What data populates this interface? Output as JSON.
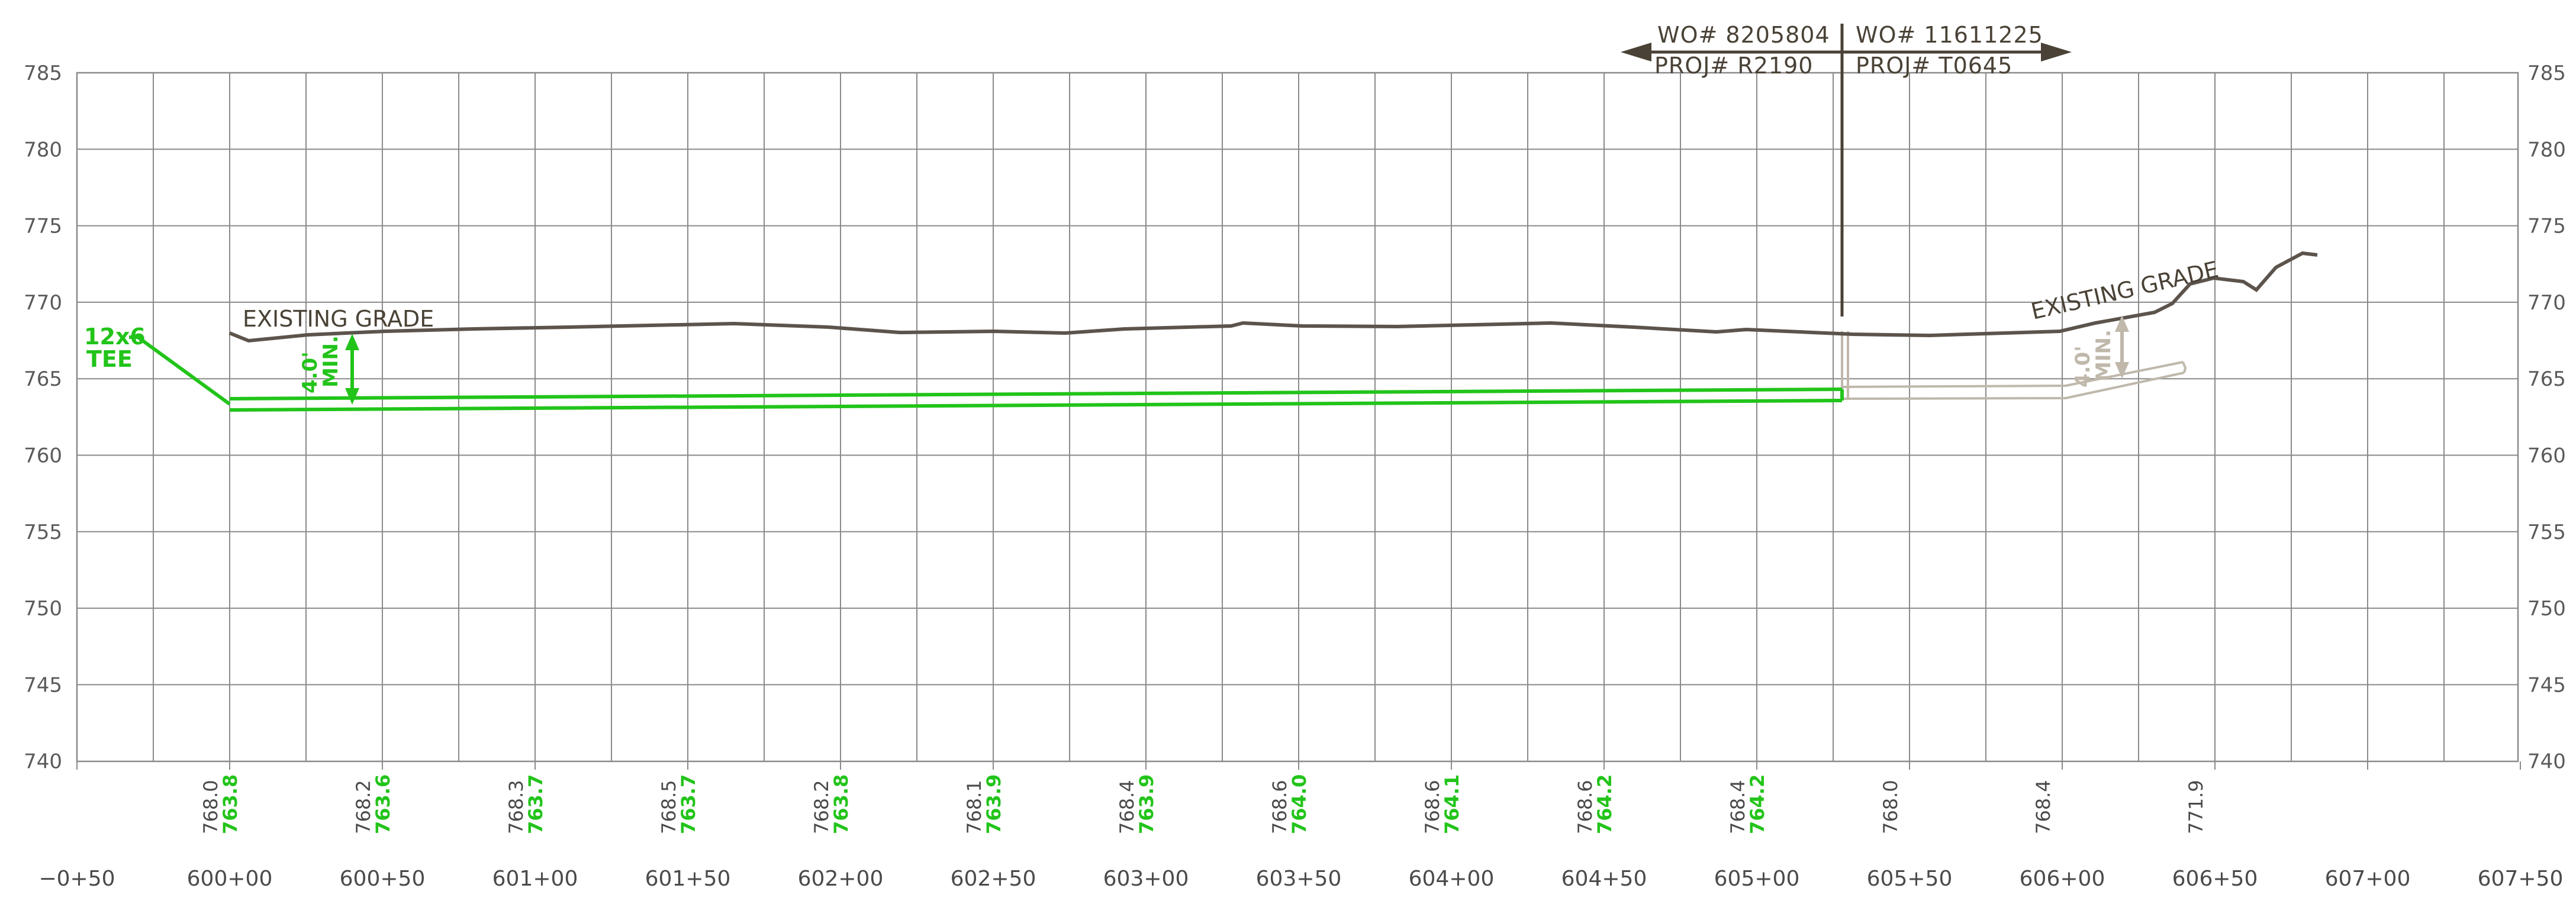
{
  "colors": {
    "grid": "#8a8a8a",
    "existing_grade": "#5c544c",
    "proposed": "#22c41a",
    "future": "#bfb8ab",
    "header": "#4a4236"
  },
  "header": {
    "left": {
      "wo": "WO# 8205804",
      "proj": "PROJ# R2190"
    },
    "right": {
      "wo": "WO# 11611225",
      "proj": "PROJ# T0645"
    }
  },
  "elevations": [
    "785",
    "780",
    "775",
    "770",
    "765",
    "760",
    "755",
    "750",
    "745",
    "740"
  ],
  "stations": [
    "−0+50",
    "600+00",
    "600+50",
    "601+00",
    "601+50",
    "602+00",
    "602+50",
    "603+00",
    "603+50",
    "604+00",
    "604+50",
    "605+00",
    "605+50",
    "606+00",
    "606+50",
    "607+00",
    "607+50"
  ],
  "existing_elevations": [
    "768.0",
    "768.2",
    "768.3",
    "768.5",
    "768.2",
    "768.1",
    "768.4",
    "768.6",
    "768.6",
    "768.6",
    "768.4",
    "768.0",
    "768.4",
    "771.9"
  ],
  "proposed_elevations": [
    "763.8",
    "763.6",
    "763.7",
    "763.7",
    "763.8",
    "763.9",
    "763.9",
    "764.0",
    "764.1",
    "764.2",
    "764.2"
  ],
  "annotations": {
    "existing_grade_1": "EXISTING GRADE",
    "existing_grade_2": "EXISTING GRADE",
    "tee": [
      "12x6",
      "TEE"
    ],
    "cover": [
      "4.0'",
      "MIN."
    ]
  }
}
